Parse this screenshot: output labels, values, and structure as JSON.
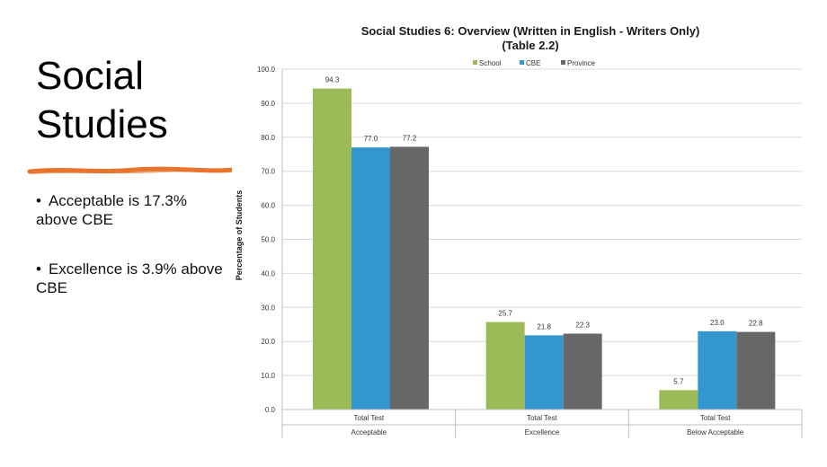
{
  "slide": {
    "title_line1": "Social",
    "title_line2": "Studies",
    "bullets": [
      "Acceptable is 17.3% above CBE",
      "Excellence is 3.9% above CBE"
    ],
    "accent_color": "#e8742e"
  },
  "chart_data": {
    "type": "bar",
    "title": "Social Studies 6: Overview (Written in English - Writers Only)",
    "subtitle": "(Table 2.2)",
    "ylabel": "Percentage of Students",
    "xlabel": "",
    "ylim": [
      0,
      100
    ],
    "ytick_step": 10,
    "grid": true,
    "legend_position": "top-center",
    "categories": [
      "Acceptable",
      "Excellence",
      "Below Acceptable"
    ],
    "category_sublabels": [
      "Total Test",
      "Total Test",
      "Total Test"
    ],
    "series": [
      {
        "name": "School",
        "color": "#9bbb59",
        "values": [
          94.3,
          25.7,
          5.7
        ]
      },
      {
        "name": "CBE",
        "color": "#3396cf",
        "values": [
          77.0,
          21.8,
          23.0
        ]
      },
      {
        "name": "Province",
        "color": "#676767",
        "values": [
          77.2,
          22.3,
          22.8
        ]
      }
    ]
  }
}
